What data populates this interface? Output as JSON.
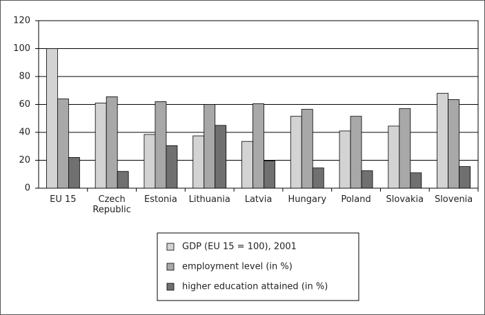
{
  "chart_data": {
    "type": "bar",
    "categories": [
      "EU 15",
      "Czech Republic",
      "Estonia",
      "Lithuania",
      "Latvia",
      "Hungary",
      "Poland",
      "Slovakia",
      "Slovenia"
    ],
    "series": [
      {
        "name": "GDP (EU 15 = 100), 2001",
        "color": "#d3d3d3",
        "values": [
          100,
          61,
          38.5,
          37.5,
          33.5,
          51.5,
          41,
          44.5,
          68
        ]
      },
      {
        "name": "employment level (in %)",
        "color": "#a8a8a8",
        "values": [
          64,
          65.5,
          62,
          60,
          60.5,
          56.5,
          51.5,
          57,
          63.5
        ]
      },
      {
        "name": "higher education attained (in %)",
        "color": "#707070",
        "values": [
          22,
          12,
          30.5,
          45,
          19.5,
          14.5,
          12.5,
          11,
          15.5
        ]
      }
    ],
    "ylim": [
      0,
      120
    ],
    "yticks": [
      0,
      20,
      40,
      60,
      80,
      100,
      120
    ],
    "grid": true,
    "legend": "bottom"
  }
}
